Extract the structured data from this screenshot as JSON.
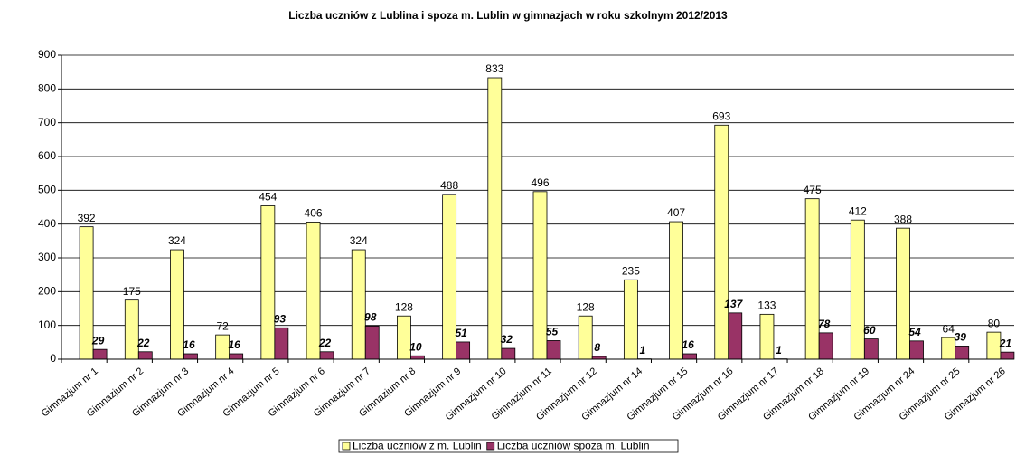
{
  "chart_data": {
    "type": "bar",
    "title": "Liczba uczniów z Lublina i spoza m. Lublin w gimnazjach w roku szkolnym 2012/2013",
    "categories": [
      "Gimnazjum nr 1",
      "Gimnazjum nr 2",
      "Gimnazjum nr 3",
      "Gimnazjum nr 4",
      "Gimnazjum nr 5",
      "Gimnazjum nr 6",
      "Gimnazjum nr 7",
      "Gimnazjum nr 8",
      "Gimnazjum nr 9",
      "Gimnazjum nr 10",
      "Gimnazjum nr 11",
      "Gimnazjum nr 12",
      "Gimnazjum nr 14",
      "Gimnazjum nr 15",
      "Gimnazjum nr 16",
      "Gimnazjum nr 17",
      "Gimnazjum nr 18",
      "Gimnazjum nr 19",
      "Gimnazjum nr 24",
      "Gimnazjum nr 25",
      "Gimnazjum nr 26"
    ],
    "series": [
      {
        "name": "Liczba uczniów z m. Lublin",
        "color": "#ffff99",
        "values": [
          392,
          175,
          324,
          72,
          454,
          406,
          324,
          128,
          488,
          833,
          496,
          128,
          235,
          407,
          693,
          133,
          475,
          412,
          388,
          64,
          80
        ]
      },
      {
        "name": "Liczba uczniów spoza m. Lublin",
        "color": "#993366",
        "values": [
          29,
          22,
          16,
          16,
          93,
          22,
          98,
          10,
          51,
          32,
          55,
          8,
          1,
          16,
          137,
          1,
          78,
          60,
          54,
          39,
          21
        ]
      }
    ],
    "ylim": [
      0,
      900
    ],
    "yticks": [
      0,
      100,
      200,
      300,
      400,
      500,
      600,
      700,
      800,
      900
    ],
    "grid": true,
    "legend": "bottom"
  }
}
